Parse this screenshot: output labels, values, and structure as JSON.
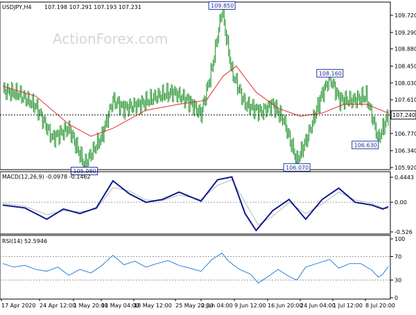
{
  "chart_data": [
    {
      "type": "candlestick",
      "title": "USDJPY,H4",
      "ohlc_header": "107.198 107.291 107.193 107.231",
      "ylim": [
        105.92,
        109.72
      ],
      "y_ticks": [
        "109.720",
        "109.290",
        "108.880",
        "108.450",
        "108.030",
        "107.610",
        "107.190",
        "106.770",
        "106.340",
        "105.920"
      ],
      "current_price": "107.240",
      "x_ticks": [
        "17 Apr 2020",
        "24 Apr 12:00",
        "1 May 20:00",
        "11 May 04:00",
        "18 May 12:00",
        "25 May 20:00",
        "2 Jun 04:00",
        "9 Jun 12:00",
        "16 Jun 20:00",
        "24 Jun 04:00",
        "1 Jul 12:00",
        "8 Jul 20:00"
      ],
      "annotations": [
        {
          "label": "109.850",
          "bar": 199
        },
        {
          "label": "105.980",
          "bar": 74
        },
        {
          "label": "106.070",
          "bar": 267
        },
        {
          "label": "108.160",
          "bar": 297
        },
        {
          "label": "106.630",
          "bar": 341
        }
      ],
      "price_path": [
        [
          0,
          107.85
        ],
        [
          15,
          107.75
        ],
        [
          30,
          107.45
        ],
        [
          45,
          106.65
        ],
        [
          60,
          106.9
        ],
        [
          74,
          105.98
        ],
        [
          90,
          106.7
        ],
        [
          100,
          107.6
        ],
        [
          110,
          107.4
        ],
        [
          125,
          107.5
        ],
        [
          140,
          107.7
        ],
        [
          155,
          107.8
        ],
        [
          170,
          107.55
        ],
        [
          180,
          107.25
        ],
        [
          190,
          108.4
        ],
        [
          199,
          109.85
        ],
        [
          208,
          108.3
        ],
        [
          220,
          107.5
        ],
        [
          235,
          107.3
        ],
        [
          245,
          107.5
        ],
        [
          255,
          107.1
        ],
        [
          267,
          106.07
        ],
        [
          277,
          106.7
        ],
        [
          289,
          107.7
        ],
        [
          297,
          108.16
        ],
        [
          306,
          107.6
        ],
        [
          318,
          107.6
        ],
        [
          330,
          107.7
        ],
        [
          341,
          106.63
        ],
        [
          350,
          107.23
        ]
      ],
      "moving_average": [
        [
          0,
          107.95
        ],
        [
          30,
          107.7
        ],
        [
          60,
          107.0
        ],
        [
          80,
          106.7
        ],
        [
          100,
          106.9
        ],
        [
          130,
          107.35
        ],
        [
          160,
          107.5
        ],
        [
          185,
          107.6
        ],
        [
          200,
          108.2
        ],
        [
          212,
          108.45
        ],
        [
          230,
          107.8
        ],
        [
          250,
          107.4
        ],
        [
          270,
          107.2
        ],
        [
          290,
          107.28
        ],
        [
          310,
          107.5
        ],
        [
          330,
          107.5
        ],
        [
          350,
          107.28
        ]
      ]
    },
    {
      "type": "line",
      "title": "MACD(12,26,9) -0.0978 -0.1462",
      "ylim": [
        -0.526,
        0.4443
      ],
      "y_ticks": [
        "0.4443",
        "0.00",
        "-0.526"
      ],
      "series": [
        {
          "values": [
            [
              0,
              -0.05
            ],
            [
              20,
              -0.1
            ],
            [
              40,
              -0.3
            ],
            [
              55,
              -0.12
            ],
            [
              70,
              -0.2
            ],
            [
              85,
              -0.1
            ],
            [
              100,
              0.38
            ],
            [
              115,
              0.15
            ],
            [
              130,
              0.0
            ],
            [
              145,
              0.05
            ],
            [
              160,
              0.18
            ],
            [
              180,
              0.02
            ],
            [
              195,
              0.4
            ],
            [
              208,
              0.45
            ],
            [
              220,
              -0.2
            ],
            [
              230,
              -0.5
            ],
            [
              245,
              -0.15
            ],
            [
              260,
              0.05
            ],
            [
              275,
              -0.3
            ],
            [
              290,
              0.05
            ],
            [
              305,
              0.25
            ],
            [
              320,
              0.0
            ],
            [
              335,
              -0.05
            ],
            [
              345,
              -0.12
            ],
            [
              350,
              -0.08
            ]
          ]
        },
        {
          "values": [
            [
              0,
              -0.02
            ],
            [
              20,
              -0.07
            ],
            [
              40,
              -0.22
            ],
            [
              55,
              -0.15
            ],
            [
              70,
              -0.17
            ],
            [
              85,
              -0.12
            ],
            [
              100,
              0.26
            ],
            [
              115,
              0.2
            ],
            [
              130,
              0.04
            ],
            [
              145,
              0.03
            ],
            [
              160,
              0.13
            ],
            [
              180,
              0.05
            ],
            [
              195,
              0.3
            ],
            [
              208,
              0.4
            ],
            [
              220,
              0.0
            ],
            [
              232,
              -0.4
            ],
            [
              245,
              -0.25
            ],
            [
              260,
              0.0
            ],
            [
              275,
              -0.2
            ],
            [
              290,
              -0.03
            ],
            [
              305,
              0.18
            ],
            [
              320,
              0.04
            ],
            [
              335,
              -0.02
            ],
            [
              345,
              -0.1
            ],
            [
              350,
              -0.12
            ]
          ]
        }
      ]
    },
    {
      "type": "line",
      "title": "RSI(14) 52.5946",
      "ylim": [
        0,
        100
      ],
      "y_ticks": [
        "100",
        "70",
        "30",
        "0"
      ],
      "series": [
        {
          "values": [
            [
              0,
              58
            ],
            [
              10,
              52
            ],
            [
              20,
              55
            ],
            [
              30,
              48
            ],
            [
              40,
              45
            ],
            [
              50,
              52
            ],
            [
              60,
              38
            ],
            [
              70,
              48
            ],
            [
              80,
              42
            ],
            [
              90,
              55
            ],
            [
              100,
              72
            ],
            [
              110,
              56
            ],
            [
              120,
              62
            ],
            [
              130,
              52
            ],
            [
              140,
              58
            ],
            [
              150,
              63
            ],
            [
              160,
              55
            ],
            [
              170,
              50
            ],
            [
              180,
              45
            ],
            [
              190,
              65
            ],
            [
              199,
              76
            ],
            [
              205,
              62
            ],
            [
              215,
              48
            ],
            [
              225,
              40
            ],
            [
              232,
              25
            ],
            [
              240,
              35
            ],
            [
              250,
              48
            ],
            [
              260,
              36
            ],
            [
              267,
              30
            ],
            [
              275,
              52
            ],
            [
              285,
              58
            ],
            [
              297,
              65
            ],
            [
              305,
              50
            ],
            [
              315,
              58
            ],
            [
              325,
              58
            ],
            [
              335,
              47
            ],
            [
              341,
              35
            ],
            [
              345,
              40
            ],
            [
              350,
              53
            ]
          ]
        }
      ]
    }
  ]
}
